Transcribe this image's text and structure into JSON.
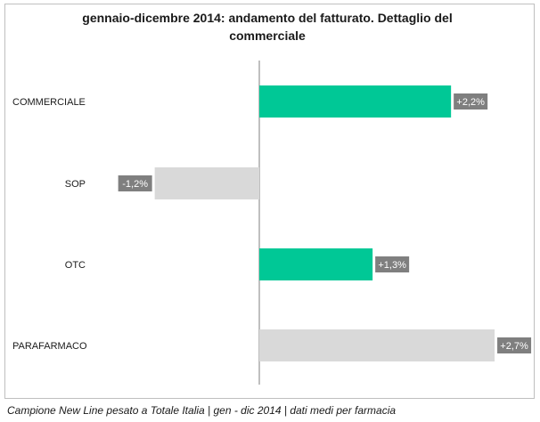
{
  "chart_data": {
    "type": "bar",
    "orientation": "horizontal",
    "title": "gennaio-dicembre 2014: andamento del fatturato. Dettaglio del commerciale",
    "categories": [
      "COMMERCIALE",
      "SOP",
      "OTC",
      "PARAFARMACO"
    ],
    "values": [
      2.2,
      -1.2,
      1.3,
      2.7
    ],
    "data_labels": [
      "+2,2%",
      "-1,2%",
      "+1,3%",
      "+2,7%"
    ],
    "xlim": [
      -1.2,
      2.7
    ],
    "grid": false,
    "legend": "none",
    "bar_colors": [
      "#00c896",
      "#d9d9d9",
      "#00c896",
      "#d9d9d9"
    ],
    "label_box_color": "#7f7f7f"
  },
  "footer": {
    "note": "Campione New Line pesato a Totale Italia | gen - dic 2014 | dati medi per farmacia"
  }
}
